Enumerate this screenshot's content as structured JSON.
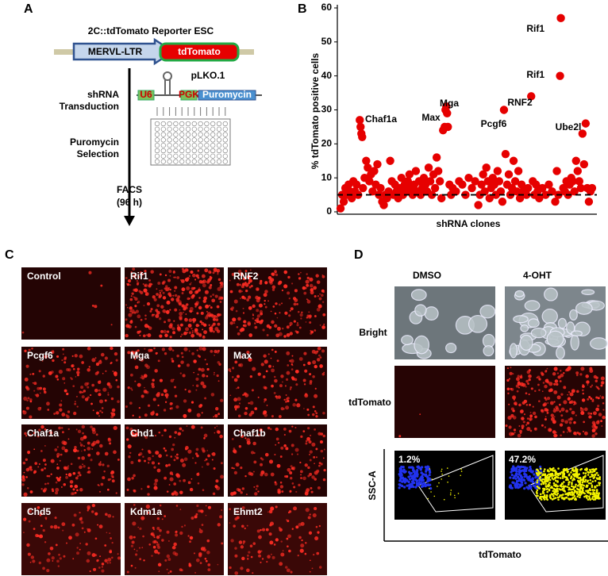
{
  "panel_labels": [
    "A",
    "B",
    "C",
    "D"
  ],
  "panel_a": {
    "title": "2C::tdTomato  Reporter ESC",
    "construct": [
      "MERVL-LTR",
      "tdTomato"
    ],
    "vector": "pLKO.1",
    "vector_parts": [
      "U6",
      "PGK",
      "Puromycin"
    ],
    "steps": [
      [
        "shRNA",
        "Transduction"
      ],
      [
        "Puromycin",
        "Selection"
      ],
      [
        "FACS",
        "(96 h)"
      ]
    ]
  },
  "chart_data": {
    "type": "scatter",
    "ylabel": "% tdTomato positive cells",
    "xlabel": "shRNA clones",
    "color": "#e60000",
    "ylim": [
      0,
      60
    ],
    "yticks": [
      0,
      10,
      20,
      30,
      40,
      50,
      60
    ],
    "xlim": [
      -2,
      160
    ],
    "reference_line": 5,
    "annotations": [
      "Rif1",
      "Rif1",
      "RNF2",
      "Ube2l",
      "Pcgf6",
      "Mga",
      "Max",
      "Chaf1a"
    ],
    "x": [
      0,
      1,
      2,
      3,
      4,
      5,
      6,
      7,
      8,
      9,
      10,
      11,
      12,
      12.5,
      13,
      13.5,
      14,
      15,
      16,
      17,
      18,
      19,
      20,
      21,
      22,
      23,
      24,
      25,
      26,
      27,
      28,
      29,
      30,
      31,
      32,
      33,
      34,
      35,
      36,
      37,
      38,
      39,
      40,
      41,
      42,
      43,
      44,
      45,
      46,
      47,
      48,
      49,
      50,
      51,
      52,
      53,
      54,
      55,
      56,
      57,
      58,
      59,
      60,
      61,
      62,
      63,
      64,
      65,
      65.5,
      66,
      66.5,
      67,
      68,
      69,
      70,
      72,
      74,
      76,
      78,
      80,
      82,
      84,
      86,
      87,
      88,
      89,
      90,
      91,
      92,
      93,
      94,
      95,
      96,
      97,
      98,
      99,
      100,
      101,
      102,
      103,
      104,
      105,
      106,
      107,
      108,
      109,
      110,
      111,
      112,
      113,
      114,
      116,
      117,
      119,
      120,
      121,
      122,
      123,
      124,
      126,
      128,
      130,
      132,
      134,
      135,
      136,
      137.5,
      137,
      139,
      140,
      141,
      142,
      143,
      144,
      145,
      146,
      147,
      148,
      149,
      150,
      151,
      152,
      153,
      154,
      155,
      156,
      157
    ],
    "values": [
      1,
      5,
      3,
      7,
      5,
      8,
      6,
      4,
      9,
      6,
      8,
      5,
      27,
      25,
      23,
      22,
      7,
      10,
      15,
      13,
      9,
      11,
      6,
      12,
      8,
      14,
      5,
      7,
      3,
      2,
      5,
      4,
      6,
      15,
      9,
      5,
      8,
      6,
      4,
      7,
      10,
      5,
      8,
      6,
      9,
      11,
      7,
      5,
      8,
      12,
      6,
      9,
      5,
      7,
      10,
      8,
      6,
      13,
      9,
      5,
      11,
      7,
      16,
      12,
      9,
      4,
      24,
      25,
      30,
      31,
      29,
      25,
      8,
      5,
      7,
      6,
      9,
      8,
      5,
      10,
      7,
      9,
      2,
      5,
      8,
      11,
      6,
      13,
      9,
      4,
      7,
      10,
      8,
      5,
      12,
      9,
      6,
      3,
      30,
      17,
      8,
      11,
      5,
      7,
      15,
      9,
      6,
      12,
      4,
      8,
      6,
      5,
      7,
      34,
      9,
      5,
      8,
      6,
      4,
      7,
      5,
      8,
      6,
      3,
      12,
      5,
      57,
      40,
      7,
      6,
      9,
      5,
      8,
      10,
      9,
      6,
      15,
      12,
      9,
      7,
      23,
      14,
      26,
      7,
      3,
      6,
      7
    ]
  },
  "panel_c": {
    "images": [
      "Control",
      "Rif1",
      "RNF2",
      "Pcgf6",
      "Mga",
      "Max",
      "Chaf1a",
      "Chd1",
      "Chaf1b",
      "Chd5",
      "Kdm1a",
      "Ehmt2"
    ]
  },
  "panel_d": {
    "columns": [
      "DMSO",
      "4-OHT"
    ],
    "rows": [
      "Bright",
      "tdTomato"
    ],
    "flow_percent": [
      "1.2%",
      "47.2%"
    ],
    "flow_y_label": "SSC-A",
    "flow_x_label": "tdTomato"
  }
}
